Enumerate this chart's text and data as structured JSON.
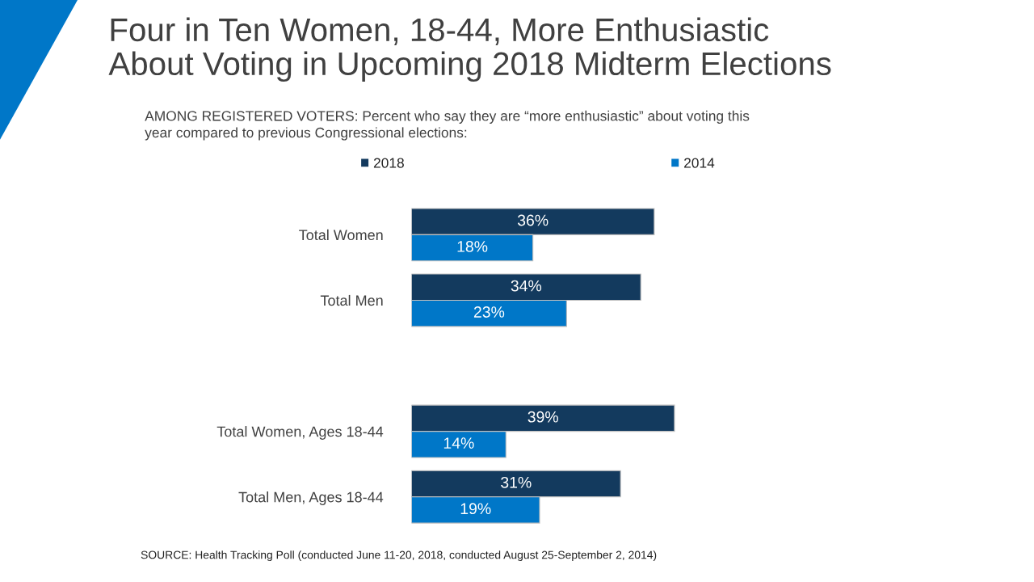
{
  "chart_data": {
    "type": "bar",
    "orientation": "horizontal",
    "title": "Four in Ten Women, 18-44, More Enthusiastic\nAbout Voting in Upcoming 2018 Midterm Elections",
    "subtitle": "AMONG REGISTERED VOTERS: Percent who say they are “more enthusiastic” about voting this\nyear compared to previous Congressional elections:",
    "categories": [
      "Total Women",
      "Total Men",
      null,
      "Total Women, Ages 18-44",
      "Total Men, Ages 18-44"
    ],
    "series": [
      {
        "name": "2018",
        "color": "#133a5e",
        "values": [
          36,
          34,
          null,
          39,
          31
        ],
        "value_labels": [
          "36%",
          "34%",
          null,
          "39%",
          "31%"
        ]
      },
      {
        "name": "2014",
        "color": "#0077c8",
        "values": [
          18,
          23,
          null,
          14,
          19
        ],
        "value_labels": [
          "18%",
          "23%",
          null,
          "14%",
          "19%"
        ]
      }
    ],
    "legend": "top",
    "tick_labels": "y",
    "grid": false,
    "annotations": [
      "SOURCE: Health Tracking Poll (conducted June 11-20, 2018, conducted August 25-September 2, 2014)"
    ]
  }
}
